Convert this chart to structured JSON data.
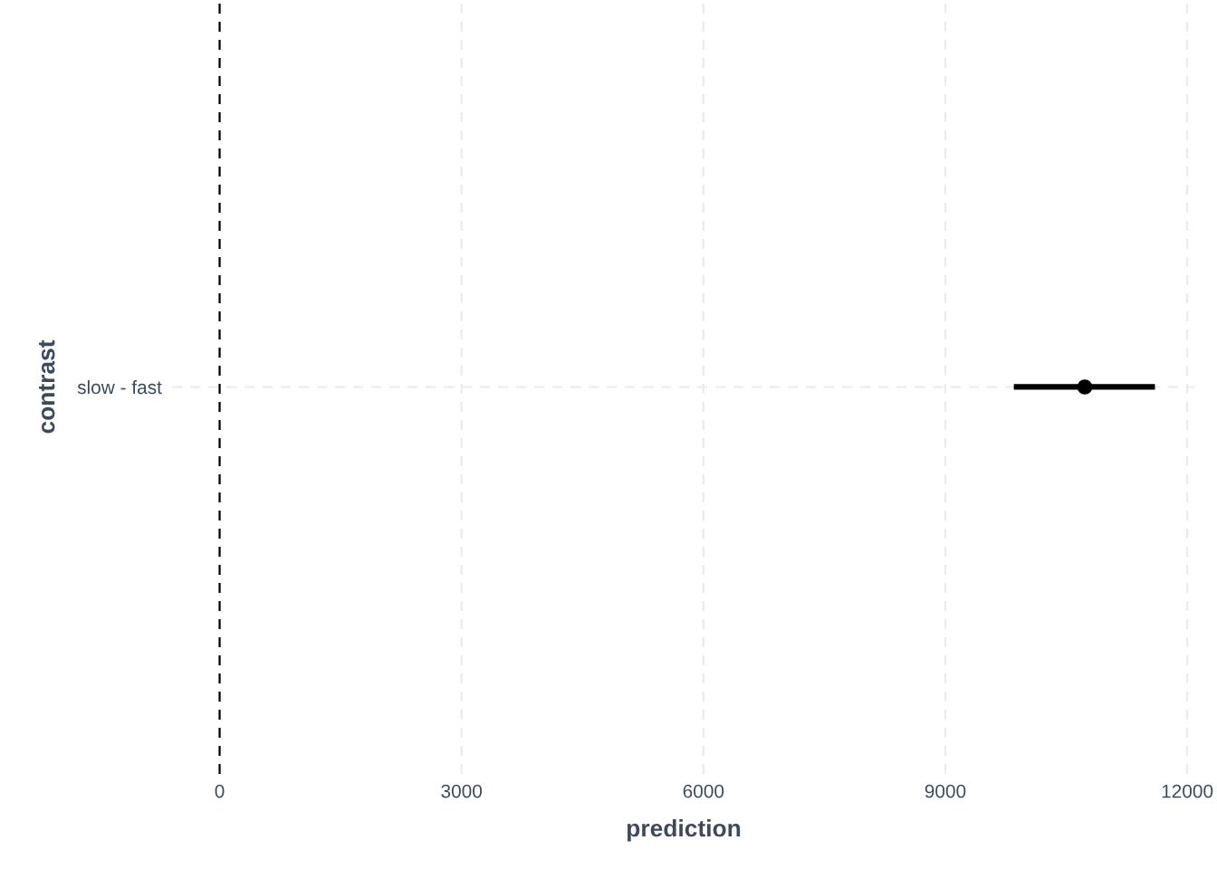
{
  "chart_data": {
    "type": "scatter",
    "orientation": "horizontal",
    "xlabel": "prediction",
    "ylabel": "contrast",
    "categories": [
      "slow - fast"
    ],
    "color": "#000000",
    "values": [
      10730
    ],
    "errors": [
      [
        9850,
        11600
      ]
    ],
    "xlim": [
      -590,
      12100
    ],
    "xticks": [
      0,
      3000,
      6000,
      9000,
      12000
    ],
    "ref_lines": [
      {
        "axis": "x",
        "value": 0,
        "color": "#000000",
        "line_style": "dashed"
      }
    ],
    "grid": true,
    "marker": "circle"
  }
}
